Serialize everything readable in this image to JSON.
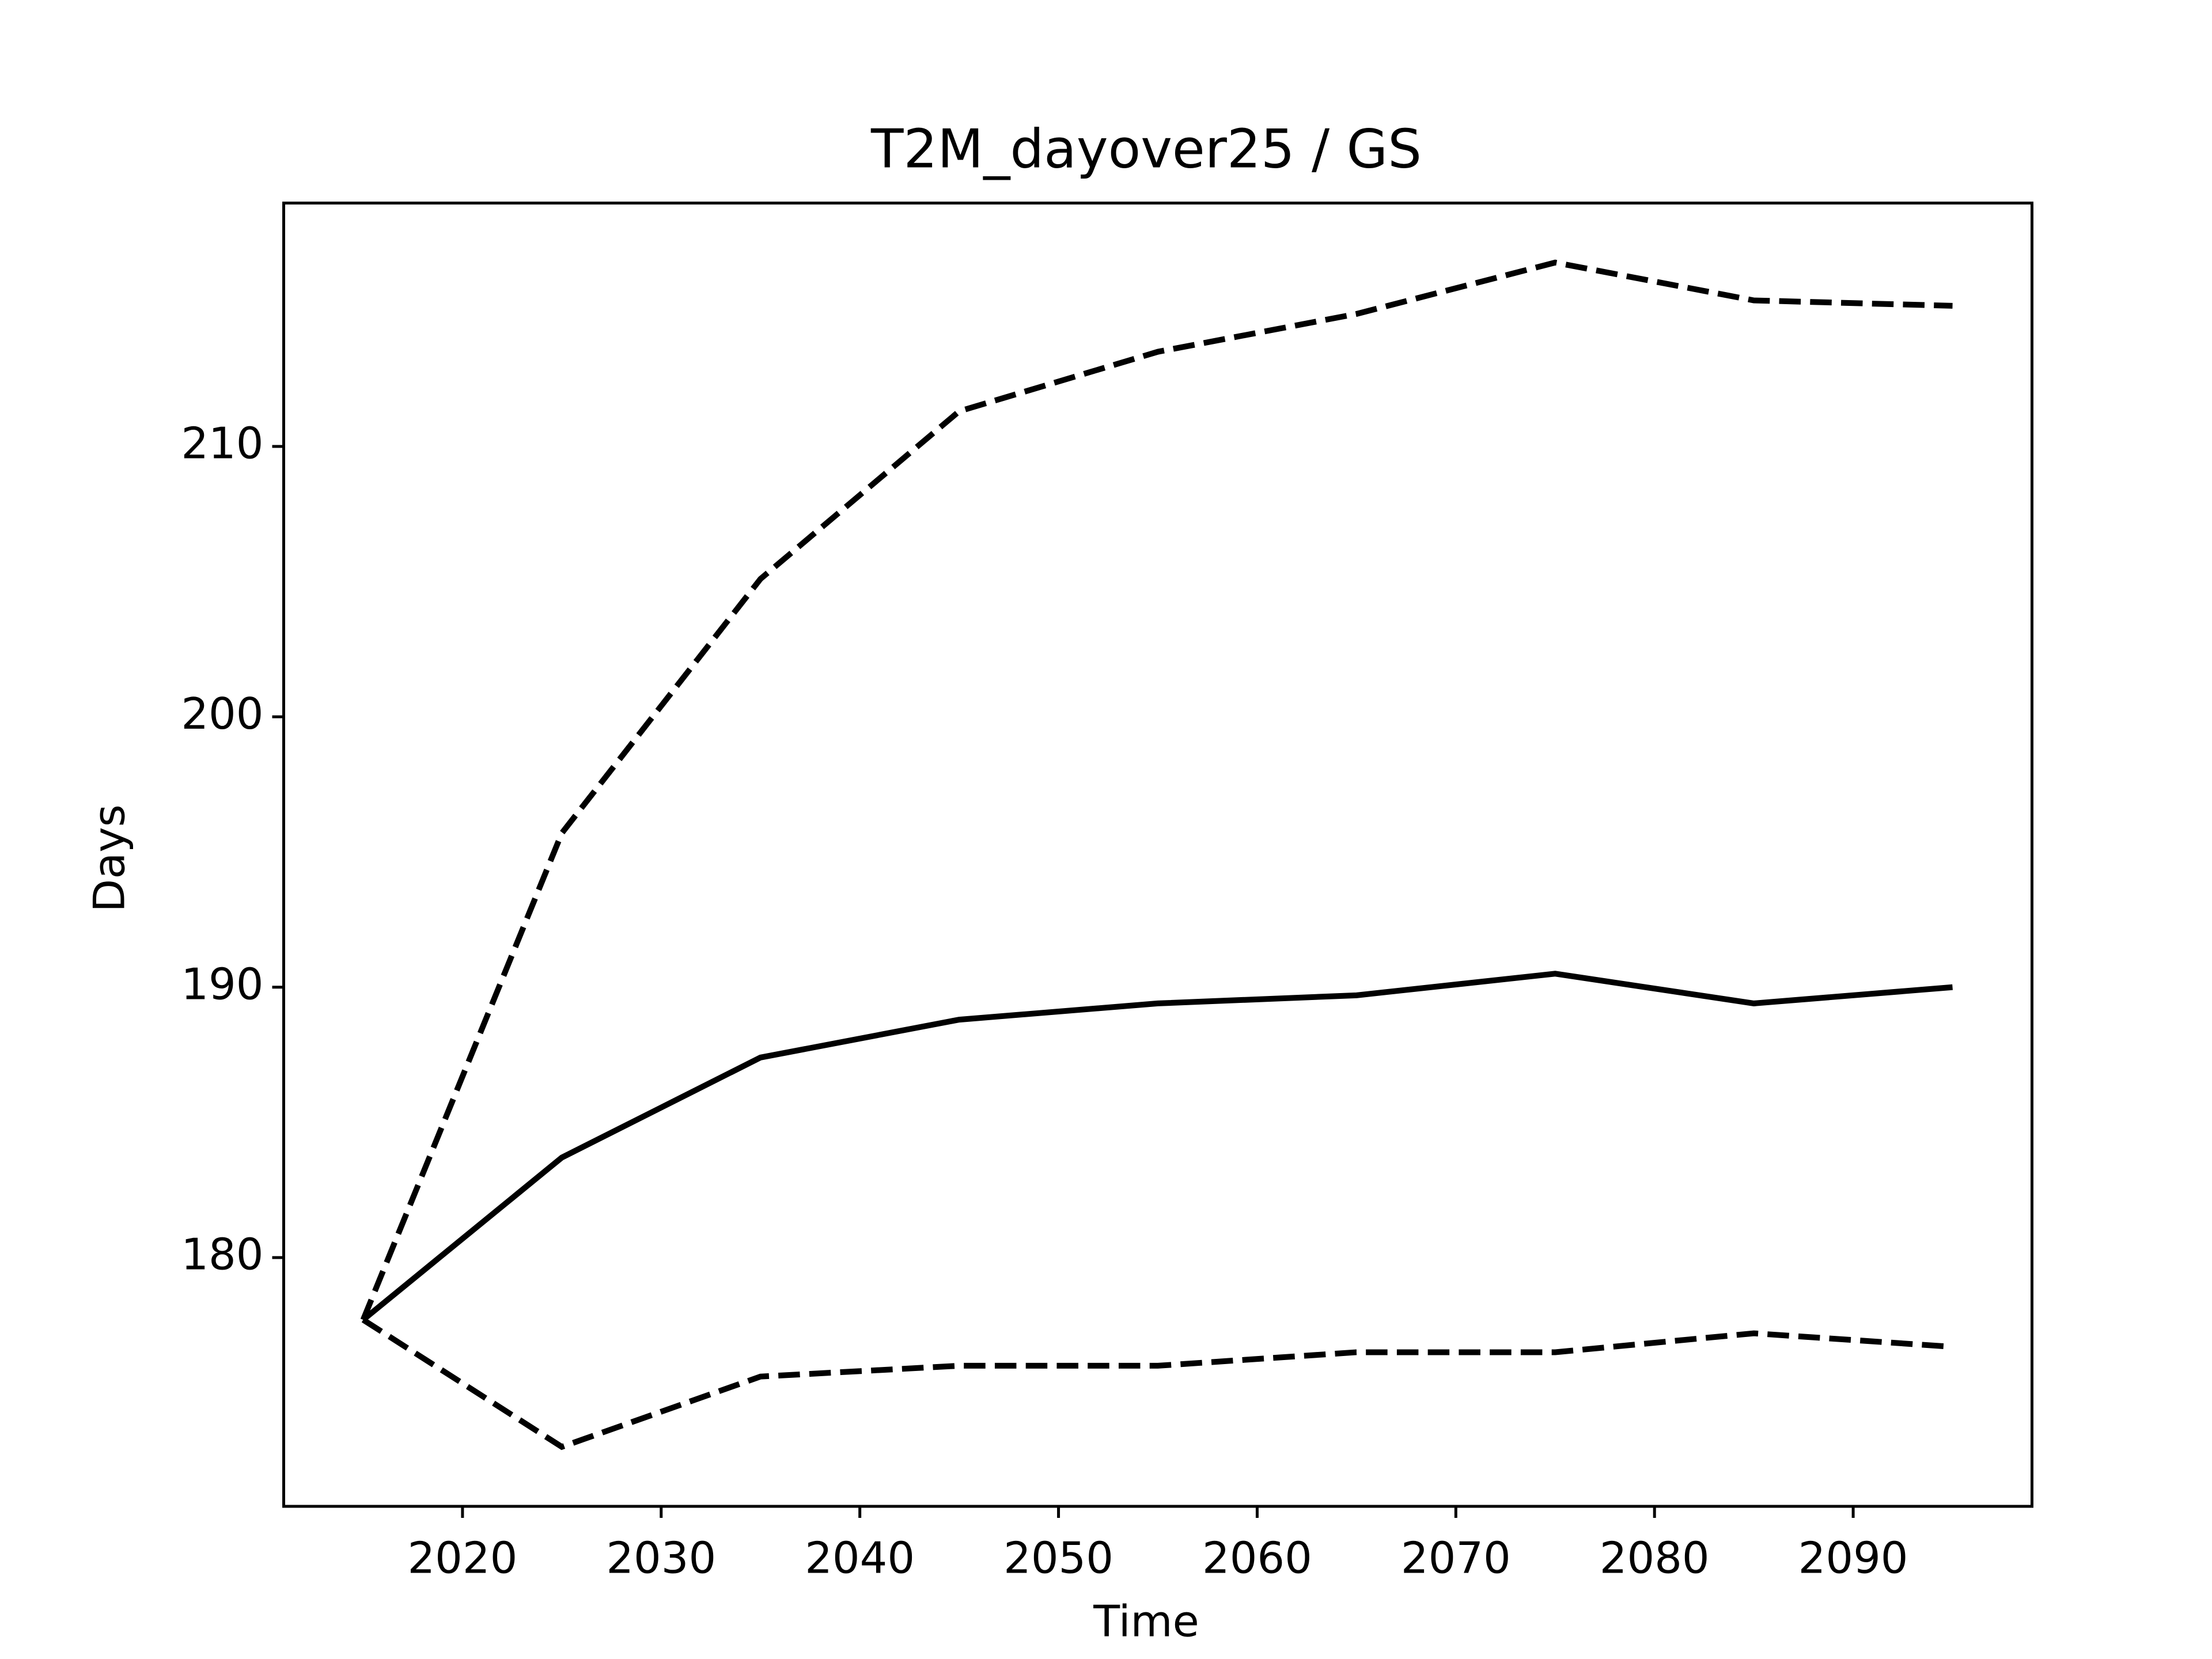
{
  "chart_data": {
    "type": "line",
    "title": "T2M_dayover25 / GS",
    "x_label": "Time",
    "y_label": "Days",
    "x": [
      2015,
      2025,
      2035,
      2045,
      2055,
      2065,
      2075,
      2085,
      2095
    ],
    "series": [
      {
        "color": "#000000",
        "linestyle": "solid",
        "values": [
          177.7,
          183.7,
          187.4,
          188.8,
          189.4,
          189.7,
          190.5,
          189.4,
          190.0
        ]
      },
      {
        "color": "#000000",
        "linestyle": "dashed",
        "values": [
          177.7,
          195.7,
          205.1,
          211.3,
          213.5,
          214.9,
          216.8,
          215.4,
          215.2
        ]
      },
      {
        "color": "#000000",
        "linestyle": "dashed",
        "values": [
          177.7,
          173.0,
          175.6,
          176.0,
          176.0,
          176.5,
          176.5,
          177.2,
          176.7
        ]
      }
    ],
    "xlim": [
      2011,
      2099
    ],
    "xticks": [
      2020,
      2030,
      2040,
      2050,
      2060,
      2070,
      2080,
      2090
    ],
    "ylim": [
      170.8,
      219.0
    ],
    "yticks": [
      180,
      190,
      200,
      210
    ],
    "grid": false
  }
}
